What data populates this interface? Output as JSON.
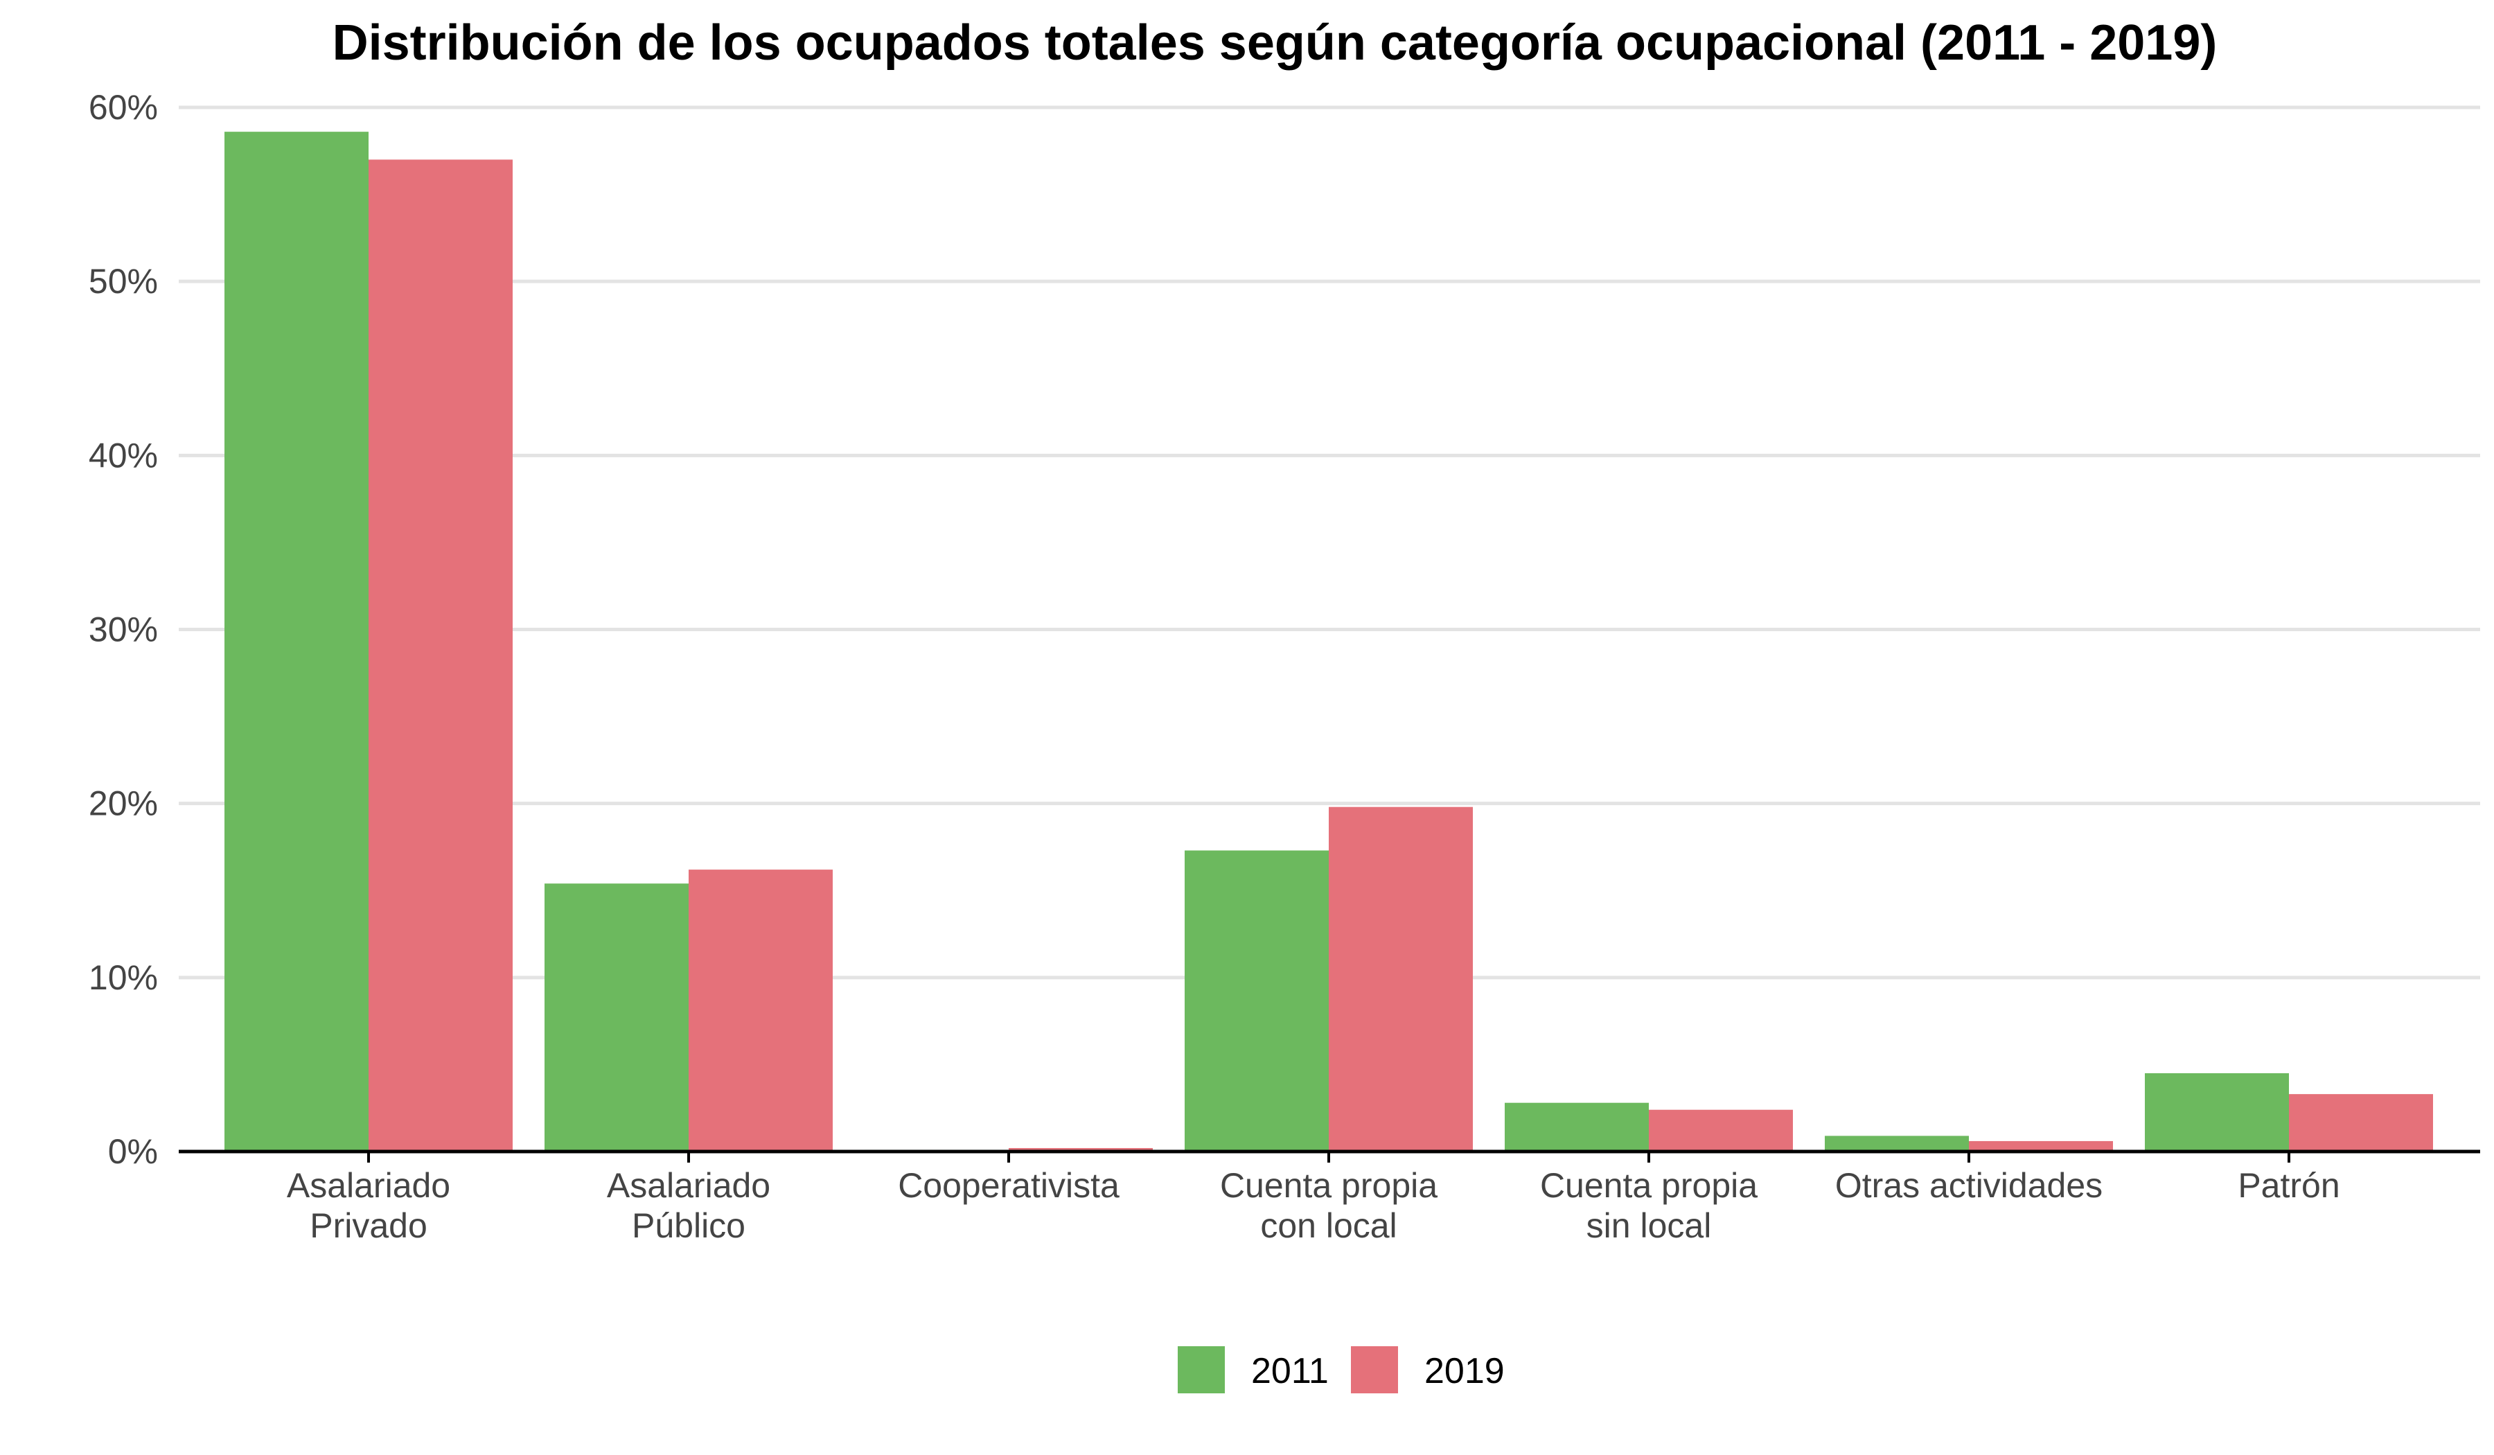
{
  "chart_data": {
    "type": "bar",
    "title": "Distribución de los ocupados totales según categoría ocupacional (2011 - 2019)",
    "xlabel": "",
    "ylabel": "",
    "ylim": [
      0,
      60
    ],
    "yticks": [
      "0%",
      "10%",
      "20%",
      "30%",
      "40%",
      "50%",
      "60%"
    ],
    "categories": [
      [
        "Asalariado",
        "Privado"
      ],
      [
        "Asalariado",
        "Público"
      ],
      [
        "Cooperativista"
      ],
      [
        "Cuenta propia",
        "con local"
      ],
      [
        "Cuenta propia",
        "sin local"
      ],
      [
        "Otras actividades"
      ],
      [
        "Patrón"
      ]
    ],
    "series": [
      {
        "name": "2011",
        "color": "#6cb95e",
        "values": [
          58.6,
          15.4,
          0.1,
          17.3,
          2.8,
          0.9,
          4.5
        ]
      },
      {
        "name": "2019",
        "color": "#e5717a",
        "values": [
          57.0,
          16.2,
          0.2,
          19.8,
          2.4,
          0.6,
          3.3
        ]
      }
    ],
    "grid": true,
    "legend_position": "bottom"
  }
}
